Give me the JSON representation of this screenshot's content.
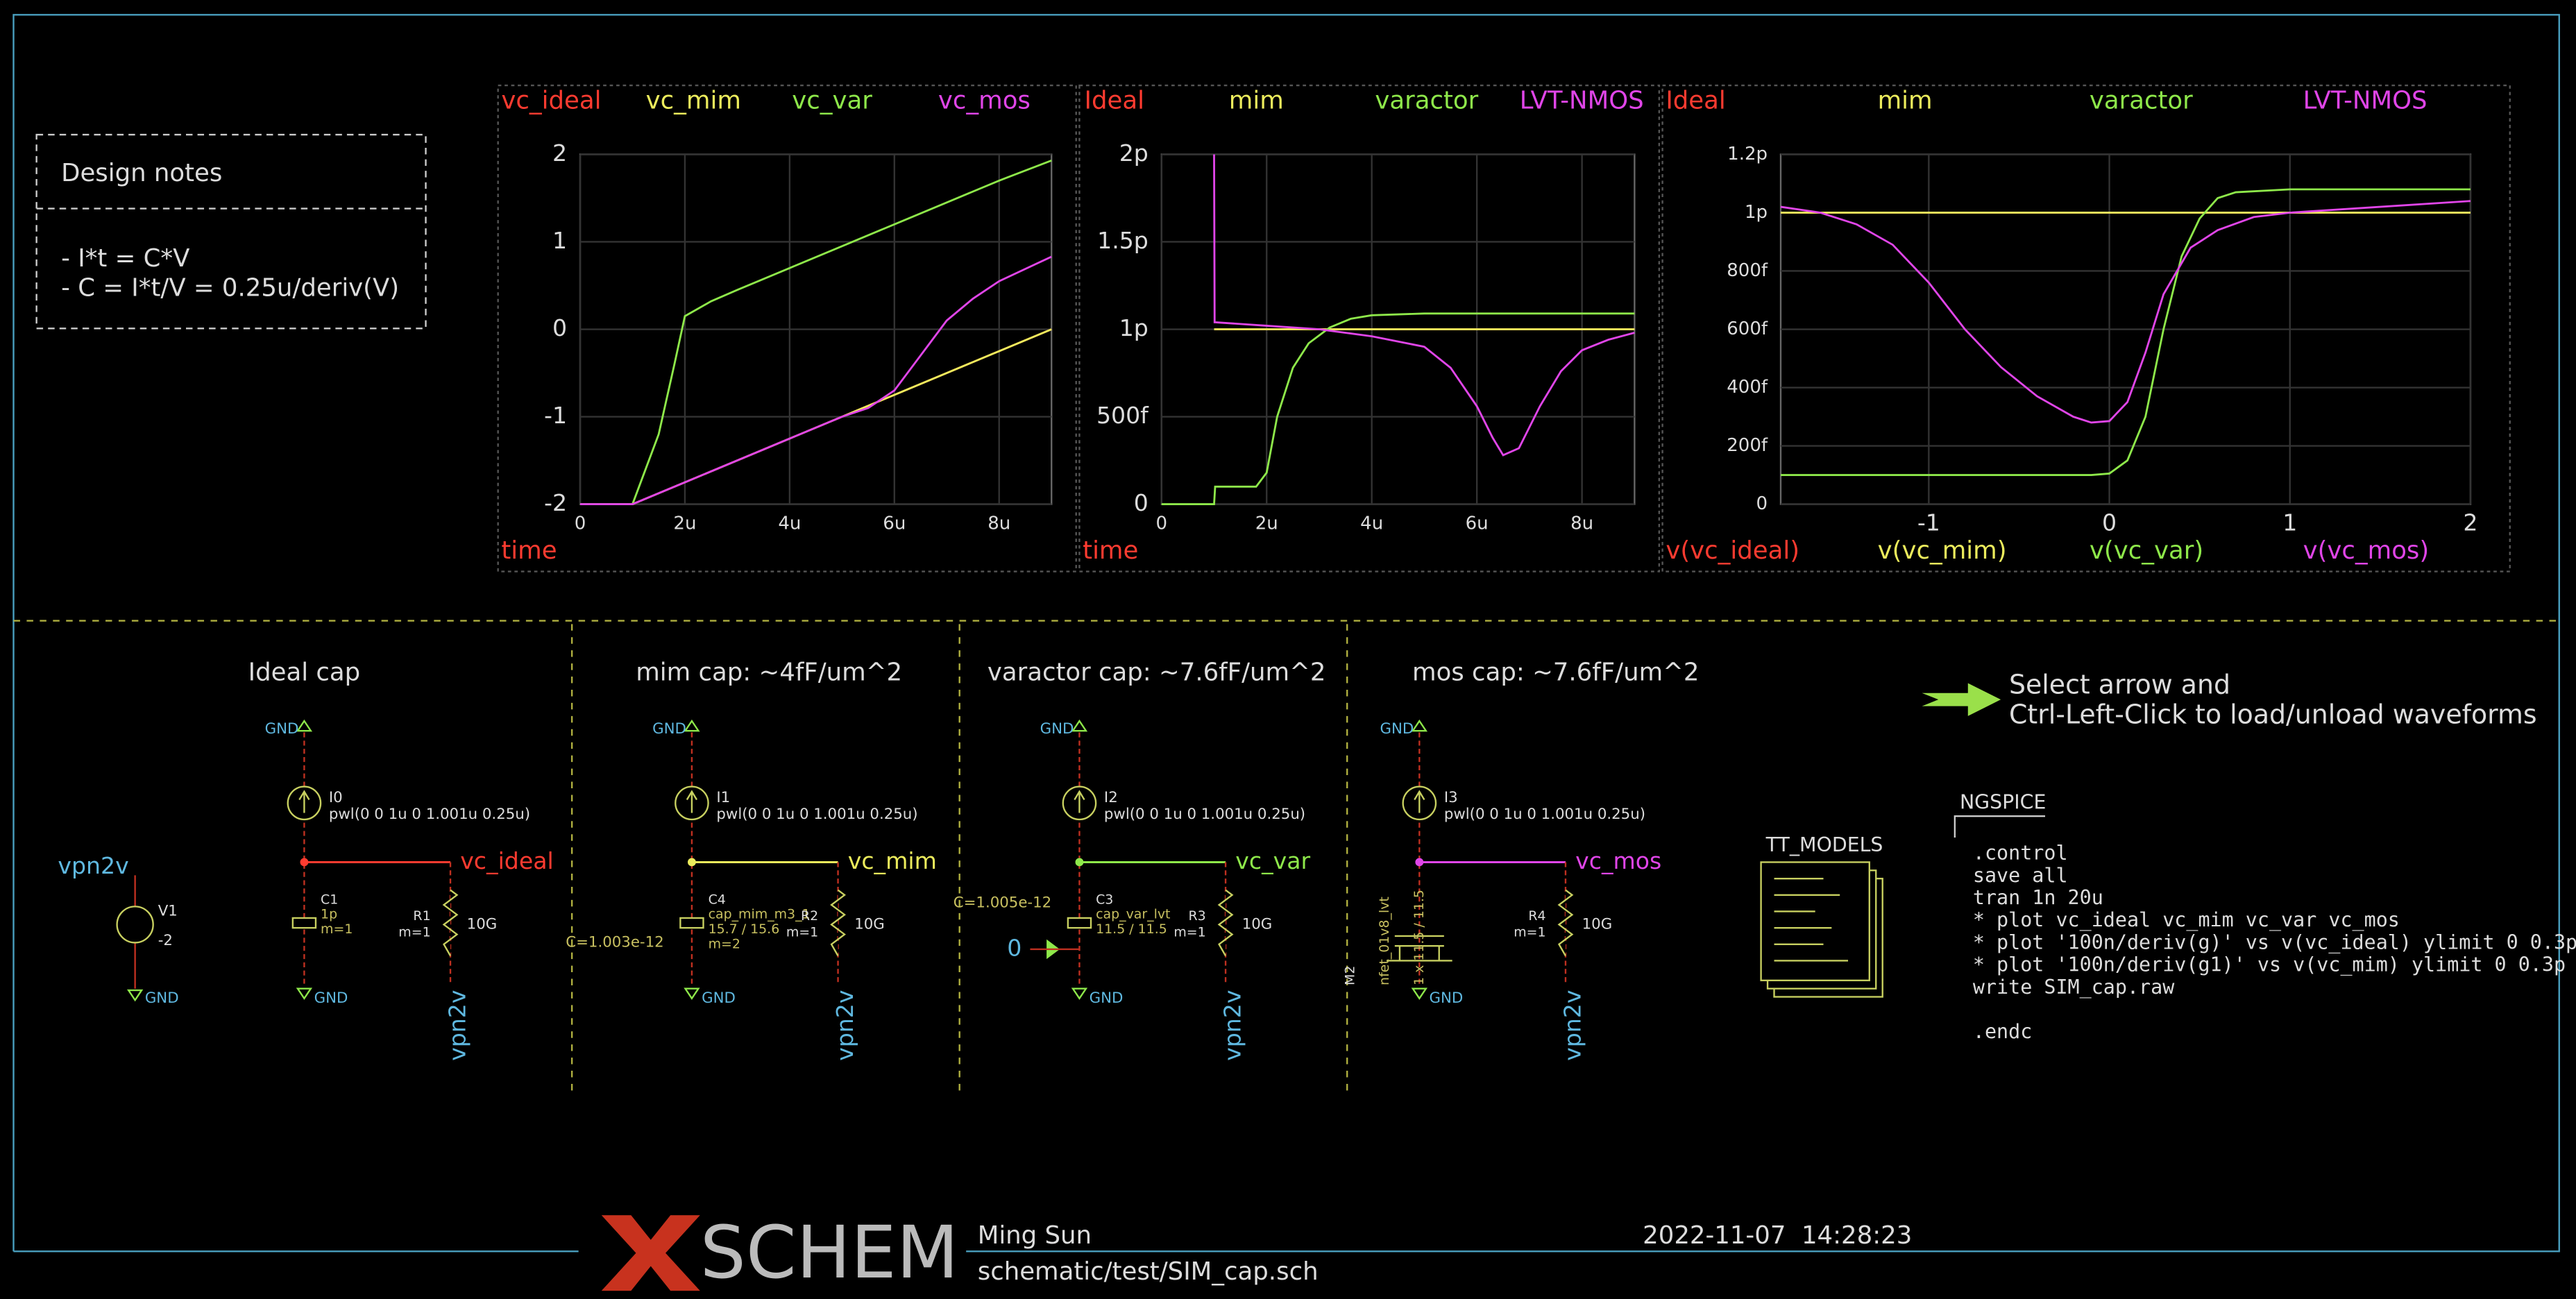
{
  "plots": [
    {
      "xlim": [
        0,
        9
      ],
      "ylim": [
        -2,
        2
      ],
      "xticks": [
        0,
        {
          "value": 2,
          "label": "2u"
        },
        {
          "value": 4,
          "label": "4u"
        },
        {
          "value": 6,
          "label": "6u"
        },
        {
          "value": 8,
          "label": "8u"
        }
      ],
      "yticks": [
        -2,
        -1,
        0,
        1,
        2
      ],
      "xlabel": "time",
      "series": [
        {
          "name": "vc_ideal",
          "color": "#ff3b30",
          "x": [
            0,
            1,
            1.5,
            2,
            3,
            4,
            5,
            6,
            7,
            8,
            9
          ],
          "values": [
            -2,
            -2,
            -1.875,
            -1.75,
            -1.5,
            -1.25,
            -1,
            -0.75,
            -0.5,
            -0.25,
            0
          ]
        },
        {
          "name": "vc_mim",
          "color": "#ecec5c",
          "x": [
            0,
            1,
            1.5,
            2,
            3,
            4,
            5,
            6,
            7,
            8,
            9
          ],
          "values": [
            -2,
            -2,
            -1.875,
            -1.75,
            -1.5,
            -1.25,
            -1,
            -0.75,
            -0.5,
            -0.25,
            0
          ]
        },
        {
          "name": "vc_var",
          "color": "#8ee84a",
          "x": [
            0,
            1,
            1.5,
            1.8,
            2,
            2.5,
            3,
            4,
            5,
            6,
            7,
            8,
            9
          ],
          "values": [
            -2,
            -2,
            -1.2,
            -0.4,
            0.15,
            0.32,
            0.45,
            0.7,
            0.95,
            1.2,
            1.45,
            1.7,
            1.93
          ]
        },
        {
          "name": "vc_mos",
          "color": "#e045e8",
          "x": [
            0,
            1,
            2,
            3,
            4,
            5,
            5.5,
            6,
            6.5,
            7,
            7.5,
            8,
            9
          ],
          "values": [
            -2,
            -2,
            -1.75,
            -1.5,
            -1.25,
            -1,
            -0.9,
            -0.7,
            -0.3,
            0.1,
            0.35,
            0.55,
            0.83
          ]
        }
      ]
    },
    {
      "xlim": [
        0,
        9
      ],
      "ylim": [
        0,
        2000
      ],
      "xticks": [
        0,
        {
          "value": 2,
          "label": "2u"
        },
        {
          "value": 4,
          "label": "4u"
        },
        {
          "value": 6,
          "label": "6u"
        },
        {
          "value": 8,
          "label": "8u"
        }
      ],
      "yticks": [
        0,
        {
          "value": 500,
          "label": "500f"
        },
        {
          "value": 1000,
          "label": "1p"
        },
        {
          "value": 1500,
          "label": "1.5p"
        },
        {
          "value": 2000,
          "label": "2p"
        }
      ],
      "xlabel": "time",
      "series": [
        {
          "name": "Ideal",
          "color": "#ff3b30",
          "x": [
            1,
            9
          ],
          "values": [
            1000,
            1000
          ]
        },
        {
          "name": "mim",
          "color": "#ecec5c",
          "x": [
            1,
            9
          ],
          "values": [
            1000,
            1000
          ]
        },
        {
          "name": "varactor",
          "color": "#8ee84a",
          "x": [
            0,
            1,
            1.02,
            1.8,
            2,
            2.2,
            2.5,
            2.8,
            3.2,
            3.6,
            4,
            5,
            9
          ],
          "values": [
            0,
            0,
            100,
            100,
            180,
            500,
            780,
            920,
            1010,
            1060,
            1080,
            1090,
            1090
          ]
        },
        {
          "name": "LVT-NMOS",
          "color": "#e045e8",
          "x": [
            1,
            1.01,
            1.02,
            2,
            3,
            4,
            5,
            5.5,
            6,
            6.3,
            6.5,
            6.8,
            7.2,
            7.6,
            8,
            8.5,
            9
          ],
          "values": [
            2000,
            1040,
            1040,
            1020,
            1000,
            960,
            900,
            780,
            560,
            380,
            280,
            320,
            560,
            760,
            880,
            940,
            980
          ]
        }
      ]
    },
    {
      "xlim": [
        -1.82,
        2
      ],
      "ylim": [
        0,
        1200
      ],
      "xticks": [
        -1,
        0,
        1,
        2
      ],
      "yticks": [
        0,
        {
          "value": 200,
          "label": "200f"
        },
        {
          "value": 400,
          "label": "400f"
        },
        {
          "value": 600,
          "label": "600f"
        },
        {
          "value": 800,
          "label": "800f"
        },
        {
          "value": 1000,
          "label": "1p"
        },
        {
          "value": 1200,
          "label": "1.2p"
        }
      ],
      "xlabels": [
        "v(vc_ideal)",
        "v(vc_mim)",
        "v(vc_var)",
        "v(vc_mos)"
      ],
      "series": [
        {
          "name": "Ideal",
          "color": "#ff3b30",
          "x": [
            -1.82,
            2
          ],
          "values": [
            1000,
            1000
          ]
        },
        {
          "name": "mim",
          "color": "#ecec5c",
          "x": [
            -1.82,
            2
          ],
          "values": [
            1000,
            1000
          ]
        },
        {
          "name": "varactor",
          "color": "#8ee84a",
          "x": [
            -1.82,
            -0.5,
            -0.1,
            0,
            0.1,
            0.2,
            0.3,
            0.4,
            0.5,
            0.6,
            0.7,
            1,
            2
          ],
          "values": [
            100,
            100,
            100,
            105,
            150,
            300,
            600,
            850,
            980,
            1050,
            1070,
            1080,
            1080
          ]
        },
        {
          "name": "LVT-NMOS",
          "color": "#e045e8",
          "x": [
            -1.82,
            -1.6,
            -1.4,
            -1.2,
            -1.0,
            -0.8,
            -0.6,
            -0.4,
            -0.2,
            -0.1,
            0,
            0.1,
            0.2,
            0.3,
            0.45,
            0.6,
            0.8,
            1,
            1.5,
            2
          ],
          "values": [
            1020,
            1000,
            960,
            890,
            760,
            600,
            470,
            370,
            300,
            280,
            285,
            350,
            520,
            720,
            880,
            940,
            985,
            1000,
            1020,
            1040
          ]
        }
      ]
    }
  ],
  "design_notes": {
    "title": "Design notes",
    "lines": [
      "- I*t = C*V",
      "- C = I*t/V = 0.25u/deriv(V)"
    ]
  },
  "source": {
    "label": "vpn2v",
    "name": "V1",
    "value": "-2",
    "gnd": "GND"
  },
  "cells": [
    {
      "title": "Ideal cap",
      "color": "#ff3b30",
      "gnd": "GND",
      "isrc": "I0",
      "pwl": "pwl(0 0 1u 0 1.001u 0.25u)",
      "net": "vc_ideal",
      "cap": [
        "C1",
        "1p",
        "m=1"
      ],
      "res": [
        "R1",
        "m=1",
        "10G"
      ],
      "vpn": "vpn2v",
      "gnd_bottom": "GND"
    },
    {
      "title": "mim cap: ~4fF/um^2",
      "color": "#ecec5c",
      "gnd": "GND",
      "isrc": "I1",
      "pwl": "pwl(0 0 1u 0 1.001u 0.25u)",
      "net": "vc_mim",
      "cap": [
        "C4",
        "cap_mim_m3_1",
        "15.7 / 15.6",
        "m=2"
      ],
      "cap_left": "C=1.003e-12",
      "res": [
        "R2",
        "m=1",
        "10G"
      ],
      "vpn": "vpn2v",
      "gnd_bottom": "GND"
    },
    {
      "title": "varactor cap: ~7.6fF/um^2",
      "color": "#8ee84a",
      "gnd": "GND",
      "isrc": "I2",
      "pwl": "pwl(0 0 1u 0 1.001u 0.25u)",
      "net": "vc_var",
      "cap": [
        "C3",
        "cap_var_lvt",
        "11.5 / 11.5"
      ],
      "cap_left": "C=1.005e-12",
      "bias": "0",
      "res": [
        "R3",
        "m=1",
        "10G"
      ],
      "vpn": "vpn2v",
      "gnd_bottom": "GND"
    },
    {
      "title": "mos cap: ~7.6fF/um^2",
      "color": "#e045e8",
      "gnd": "GND",
      "isrc": "I3",
      "pwl": "pwl(0 0 1u 0 1.001u 0.25u)",
      "net": "vc_mos",
      "cap": [
        "M2",
        "nfet_01v8_lvt",
        "1 x 11.5 / 11.5"
      ],
      "res": [
        "R4",
        "m=1",
        "10G"
      ],
      "vpn": "vpn2v",
      "gnd_bottom": "GND"
    }
  ],
  "hint": [
    "Select arrow and",
    "Ctrl-Left-Click to load/unload waveforms"
  ],
  "models": "TT_MODELS",
  "ngspice": {
    "title": "NGSPICE",
    "lines": [
      ".control",
      "save all",
      "tran 1n 20u",
      "* plot vc_ideal vc_mim vc_var vc_mos",
      "* plot '100n/deriv(g)' vs v(vc_ideal) ylimit 0 0.3p",
      "* plot '100n/deriv(g1)' vs v(vc_mim) ylimit 0 0.3p",
      "write SIM_cap.raw"
    ],
    "end": ".endc"
  },
  "footer": {
    "logo_x": "X",
    "logo": "SCHEM",
    "author": "Ming Sun",
    "file": "schematic/test/SIM_cap.sch",
    "date": "2022-11-07  14:28:23"
  }
}
